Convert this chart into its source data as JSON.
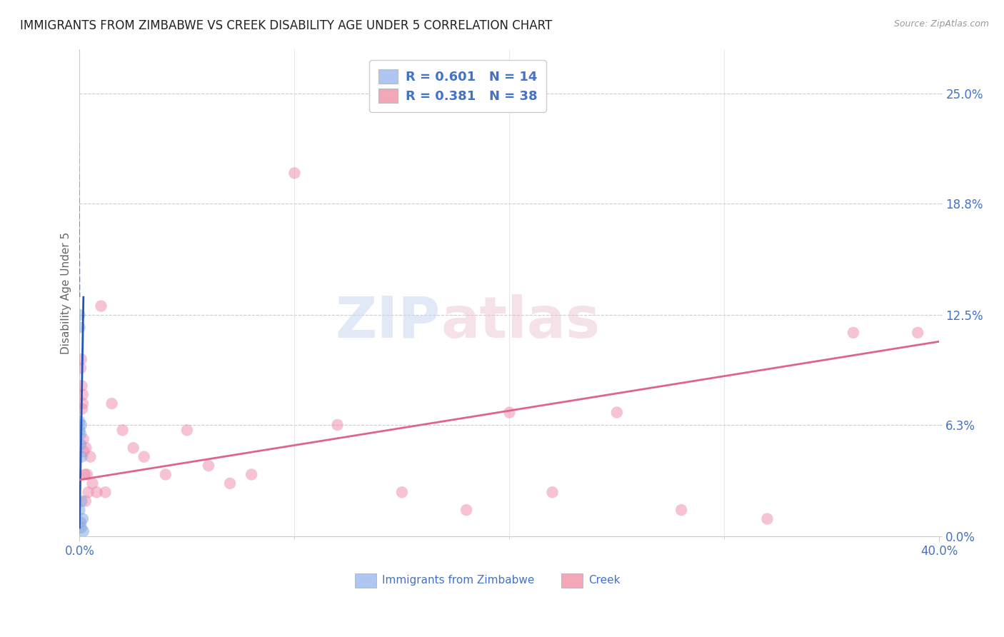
{
  "title": "IMMIGRANTS FROM ZIMBABWE VS CREEK DISABILITY AGE UNDER 5 CORRELATION CHART",
  "source": "Source: ZipAtlas.com",
  "ylabel": "Disability Age Under 5",
  "ytick_values": [
    0.0,
    6.3,
    12.5,
    18.8,
    25.0
  ],
  "xlim": [
    0.0,
    40.0
  ],
  "ylim": [
    0.0,
    27.5
  ],
  "legend_label1": "R = 0.601   N = 14",
  "legend_label2": "R = 0.381   N = 38",
  "legend_color1": "#aec6f0",
  "legend_color2": "#f4a7b9",
  "watermark_zip": "ZIP",
  "watermark_atlas": "atlas",
  "blue_scatter_x": [
    0.0,
    0.0,
    0.0,
    0.0,
    0.0,
    0.05,
    0.05,
    0.05,
    0.08,
    0.08,
    0.1,
    0.1,
    0.15,
    0.18
  ],
  "blue_scatter_y": [
    12.5,
    11.8,
    6.5,
    6.0,
    1.5,
    5.8,
    5.2,
    0.8,
    6.3,
    0.5,
    4.5,
    2.0,
    1.0,
    0.3
  ],
  "pink_scatter_x": [
    0.05,
    0.08,
    0.1,
    0.12,
    0.15,
    0.15,
    0.18,
    0.2,
    0.25,
    0.28,
    0.3,
    0.35,
    0.4,
    0.5,
    0.6,
    0.8,
    1.0,
    1.2,
    1.5,
    2.0,
    2.5,
    3.0,
    4.0,
    5.0,
    6.0,
    7.0,
    8.0,
    10.0,
    12.0,
    15.0,
    18.0,
    20.0,
    22.0,
    25.0,
    28.0,
    32.0,
    36.0,
    39.0
  ],
  "pink_scatter_y": [
    9.5,
    10.0,
    8.5,
    7.2,
    8.0,
    7.5,
    5.5,
    4.8,
    3.5,
    2.0,
    5.0,
    3.5,
    2.5,
    4.5,
    3.0,
    2.5,
    13.0,
    2.5,
    7.5,
    6.0,
    5.0,
    4.5,
    3.5,
    6.0,
    4.0,
    3.0,
    3.5,
    20.5,
    6.3,
    2.5,
    1.5,
    7.0,
    2.5,
    7.0,
    1.5,
    1.0,
    11.5,
    11.5
  ],
  "blue_line_color": "#2255bb",
  "pink_line_color": "#dd6688",
  "scatter_blue_color": "#88aade",
  "scatter_pink_color": "#ee88aa",
  "grid_color": "#cccccc",
  "title_color": "#222222",
  "axis_label_color": "#4472c4",
  "title_fontsize": 12,
  "axis_fontsize": 11,
  "tick_fontsize": 12,
  "blue_line_x0": 0.0,
  "blue_line_x1": 0.18,
  "blue_line_y0": 0.5,
  "blue_line_y1": 13.5,
  "blue_dash_x0": -0.05,
  "blue_dash_x1": 0.0,
  "blue_dash_y0": 24.0,
  "blue_dash_y1": 13.5,
  "pink_line_x0": 0.0,
  "pink_line_x1": 40.0,
  "pink_line_y0": 3.2,
  "pink_line_y1": 11.0
}
